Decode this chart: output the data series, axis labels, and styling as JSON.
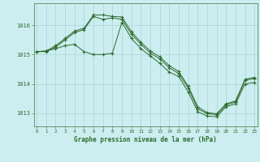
{
  "title": "Graphe pression niveau de la mer (hPa)",
  "background_color": "#cceef0",
  "grid_color": "#aad4d8",
  "line_color": "#2d6a2d",
  "x_ticks": [
    0,
    1,
    2,
    3,
    4,
    5,
    6,
    7,
    8,
    9,
    10,
    11,
    12,
    13,
    14,
    15,
    16,
    17,
    18,
    19,
    20,
    21,
    22,
    23
  ],
  "y_ticks": [
    1013,
    1014,
    1015,
    1016
  ],
  "ylim": [
    1012.55,
    1016.75
  ],
  "xlim": [
    -0.3,
    23.3
  ],
  "series": {
    "line1": [
      1015.1,
      1015.1,
      1015.25,
      1015.5,
      1015.75,
      1015.85,
      1016.3,
      1016.2,
      1016.25,
      1016.2,
      1015.7,
      1015.35,
      1015.05,
      1014.85,
      1014.55,
      1014.35,
      1013.85,
      1013.15,
      1012.98,
      1012.95,
      1013.28,
      1013.38,
      1014.12,
      1014.18
    ],
    "line2": [
      1015.1,
      1015.12,
      1015.3,
      1015.55,
      1015.8,
      1015.9,
      1016.35,
      1016.35,
      1016.3,
      1016.28,
      1015.78,
      1015.42,
      1015.12,
      1014.92,
      1014.62,
      1014.42,
      1013.92,
      1013.22,
      1013.02,
      1012.98,
      1013.32,
      1013.42,
      1014.16,
      1014.22
    ],
    "line3": [
      1015.1,
      1015.12,
      1015.2,
      1015.3,
      1015.35,
      1015.1,
      1015.0,
      1015.0,
      1015.05,
      1016.1,
      1015.55,
      1015.2,
      1014.95,
      1014.7,
      1014.4,
      1014.25,
      1013.72,
      1013.05,
      1012.9,
      1012.88,
      1013.22,
      1013.32,
      1014.0,
      1014.05
    ]
  }
}
